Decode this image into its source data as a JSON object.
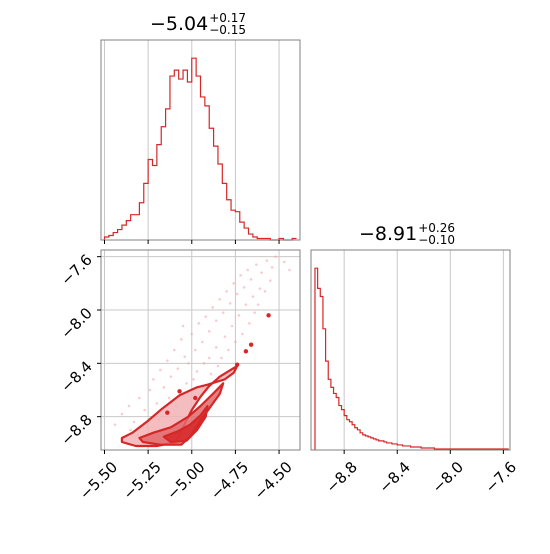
{
  "chart_data": [
    {
      "panel": "p(x) marginal",
      "type": "histogram",
      "title": {
        "median": "−5.04",
        "plus": "+0.17",
        "minus": "−0.15"
      },
      "xlim": [
        -5.52,
        -4.38
      ],
      "xgrid": [
        -5.5,
        -5.25,
        -5.0,
        -4.75,
        -4.5
      ],
      "grid": true,
      "color": "#d62728",
      "bin_edges": [
        -5.5,
        -5.475,
        -5.45,
        -5.425,
        -5.4,
        -5.375,
        -5.35,
        -5.325,
        -5.3,
        -5.275,
        -5.25,
        -5.225,
        -5.2,
        -5.175,
        -5.15,
        -5.125,
        -5.1,
        -5.075,
        -5.05,
        -5.025,
        -5.0,
        -4.975,
        -4.95,
        -4.925,
        -4.9,
        -4.875,
        -4.85,
        -4.825,
        -4.8,
        -4.775,
        -4.75,
        -4.725,
        -4.7,
        -4.675,
        -4.65,
        -4.625,
        -4.6,
        -4.575,
        -4.55,
        -4.525,
        -4.5,
        -4.475,
        -4.45,
        -4.425,
        -4.4
      ],
      "counts": [
        2,
        3,
        5,
        7,
        10,
        13,
        17,
        17,
        25,
        38,
        54,
        50,
        64,
        76,
        88,
        110,
        114,
        108,
        114,
        106,
        122,
        110,
        96,
        90,
        75,
        63,
        51,
        38,
        27,
        20,
        19,
        12,
        8,
        4,
        2,
        1,
        1,
        1,
        0,
        0,
        1,
        0,
        0,
        1
      ]
    },
    {
      "panel": "x vs y 2D density",
      "type": "scatter",
      "xlim": [
        -5.52,
        -4.38
      ],
      "ylim": [
        -9.05,
        -7.55
      ],
      "xticks": [
        -5.5,
        -5.25,
        -5.0,
        -4.75,
        -4.5
      ],
      "xtick_labels": [
        "−5.50",
        "−5.25",
        "−5.00",
        "−4.75",
        "−4.50"
      ],
      "yticks": [
        -7.6,
        -8.0,
        -8.4,
        -8.8
      ],
      "ytick_labels": [
        "−7.6",
        "−8.0",
        "−8.4",
        "−8.8"
      ],
      "grid": true,
      "color": "#d62728",
      "contour_levels": [
        {
          "fill": "#f2b2b4",
          "points": [
            [
              -5.4,
              -8.96
            ],
            [
              -5.34,
              -8.92
            ],
            [
              -5.25,
              -8.83
            ],
            [
              -5.17,
              -8.74
            ],
            [
              -5.07,
              -8.64
            ],
            [
              -4.97,
              -8.58
            ],
            [
              -4.91,
              -8.56
            ],
            [
              -4.86,
              -8.54
            ],
            [
              -4.81,
              -8.52
            ],
            [
              -4.76,
              -8.47
            ],
            [
              -4.74,
              -8.42
            ],
            [
              -4.79,
              -8.46
            ],
            [
              -4.84,
              -8.5
            ],
            [
              -4.9,
              -8.57
            ],
            [
              -4.95,
              -8.65
            ],
            [
              -5.0,
              -8.75
            ],
            [
              -5.05,
              -8.88
            ],
            [
              -5.09,
              -8.99
            ],
            [
              -5.2,
              -9.02
            ],
            [
              -5.32,
              -9.02
            ],
            [
              -5.4,
              -8.99
            ]
          ]
        },
        {
          "fill": "#e06a6c",
          "points": [
            [
              -5.3,
              -8.96
            ],
            [
              -5.22,
              -8.92
            ],
            [
              -5.12,
              -8.88
            ],
            [
              -5.02,
              -8.8
            ],
            [
              -4.95,
              -8.72
            ],
            [
              -4.88,
              -8.63
            ],
            [
              -4.82,
              -8.55
            ],
            [
              -4.84,
              -8.63
            ],
            [
              -4.89,
              -8.72
            ],
            [
              -4.95,
              -8.83
            ],
            [
              -5.01,
              -8.95
            ],
            [
              -5.06,
              -9.01
            ],
            [
              -5.18,
              -9.01
            ],
            [
              -5.28,
              -8.99
            ]
          ]
        },
        {
          "fill": "#d62728",
          "points": [
            [
              -5.16,
              -8.95
            ],
            [
              -5.08,
              -8.91
            ],
            [
              -5.01,
              -8.86
            ],
            [
              -4.95,
              -8.79
            ],
            [
              -4.91,
              -8.72
            ],
            [
              -4.92,
              -8.8
            ],
            [
              -4.97,
              -8.9
            ],
            [
              -5.03,
              -8.98
            ],
            [
              -5.12,
              -8.99
            ]
          ]
        }
      ],
      "islands": [
        [
          -4.56,
          -8.04
        ],
        [
          -4.66,
          -8.26
        ],
        [
          -4.69,
          -8.31
        ],
        [
          -4.74,
          -8.41
        ],
        [
          -4.98,
          -8.66
        ],
        [
          -5.07,
          -8.61
        ],
        [
          -5.14,
          -8.77
        ]
      ],
      "density_points": [
        [
          -5.44,
          -8.86
        ],
        [
          -5.4,
          -8.78
        ],
        [
          -5.36,
          -8.72
        ],
        [
          -5.33,
          -8.84
        ],
        [
          -5.3,
          -8.66
        ],
        [
          -5.27,
          -8.75
        ],
        [
          -5.24,
          -8.6
        ],
        [
          -5.22,
          -8.52
        ],
        [
          -5.2,
          -8.7
        ],
        [
          -5.18,
          -8.45
        ],
        [
          -5.16,
          -8.58
        ],
        [
          -5.14,
          -8.38
        ],
        [
          -5.12,
          -8.5
        ],
        [
          -5.1,
          -8.3
        ],
        [
          -5.08,
          -8.44
        ],
        [
          -5.06,
          -8.22
        ],
        [
          -5.04,
          -8.35
        ],
        [
          -5.02,
          -8.4
        ],
        [
          -5.0,
          -8.18
        ],
        [
          -4.98,
          -8.3
        ],
        [
          -4.96,
          -8.1
        ],
        [
          -4.94,
          -8.24
        ],
        [
          -4.92,
          -8.05
        ],
        [
          -4.9,
          -8.16
        ],
        [
          -4.88,
          -7.98
        ],
        [
          -4.86,
          -8.08
        ],
        [
          -4.84,
          -7.92
        ],
        [
          -4.82,
          -8.02
        ],
        [
          -4.8,
          -7.86
        ],
        [
          -4.78,
          -7.95
        ],
        [
          -4.76,
          -7.8
        ],
        [
          -4.74,
          -7.88
        ],
        [
          -4.72,
          -7.74
        ],
        [
          -4.7,
          -7.83
        ],
        [
          -4.68,
          -7.7
        ],
        [
          -4.66,
          -7.77
        ],
        [
          -4.63,
          -7.66
        ],
        [
          -4.6,
          -7.72
        ],
        [
          -4.57,
          -7.63
        ],
        [
          -4.54,
          -7.68
        ],
        [
          -4.52,
          -7.6
        ],
        [
          -4.47,
          -7.64
        ],
        [
          -4.44,
          -7.7
        ],
        [
          -5.28,
          -8.95
        ],
        [
          -5.22,
          -8.98
        ],
        [
          -5.05,
          -8.12
        ],
        [
          -4.99,
          -8.52
        ],
        [
          -4.9,
          -8.36
        ],
        [
          -4.86,
          -8.28
        ],
        [
          -4.81,
          -8.2
        ],
        [
          -4.77,
          -8.12
        ],
        [
          -4.73,
          -8.04
        ],
        [
          -4.69,
          -7.96
        ],
        [
          -4.65,
          -7.9
        ],
        [
          -4.61,
          -7.84
        ],
        [
          -4.58,
          -7.86
        ],
        [
          -4.55,
          -7.78
        ],
        [
          -5.35,
          -8.9
        ],
        [
          -5.31,
          -8.94
        ],
        [
          -5.25,
          -8.88
        ],
        [
          -5.19,
          -8.82
        ],
        [
          -5.13,
          -8.66
        ],
        [
          -5.09,
          -8.72
        ],
        [
          -5.03,
          -8.55
        ],
        [
          -4.97,
          -8.46
        ],
        [
          -4.93,
          -8.4
        ],
        [
          -4.89,
          -8.48
        ],
        [
          -4.85,
          -8.42
        ],
        [
          -4.83,
          -8.36
        ],
        [
          -4.79,
          -8.3
        ],
        [
          -4.75,
          -8.24
        ],
        [
          -4.71,
          -8.18
        ],
        [
          -4.67,
          -8.1
        ],
        [
          -4.64,
          -8.02
        ],
        [
          -4.62,
          -7.96
        ]
      ]
    },
    {
      "panel": "p(y) marginal",
      "type": "histogram",
      "title": {
        "median": "−8.91",
        "plus": "+0.26",
        "minus": "−0.10"
      },
      "xlim": [
        -9.05,
        -7.55
      ],
      "xticks": [
        -8.8,
        -8.4,
        -8.0,
        -7.6
      ],
      "xtick_labels": [
        "−8.8",
        "−8.4",
        "−8.0",
        "−7.6"
      ],
      "grid": true,
      "color": "#d62728",
      "bin_edges": [
        -9.02,
        -9.0,
        -8.98,
        -8.96,
        -8.94,
        -8.92,
        -8.9,
        -8.88,
        -8.86,
        -8.84,
        -8.82,
        -8.8,
        -8.78,
        -8.76,
        -8.74,
        -8.72,
        -8.7,
        -8.68,
        -8.66,
        -8.64,
        -8.62,
        -8.6,
        -8.58,
        -8.56,
        -8.54,
        -8.52,
        -8.5,
        -8.48,
        -8.46,
        -8.44,
        -8.42,
        -8.4,
        -8.38,
        -8.36,
        -8.34,
        -8.32,
        -8.3,
        -8.28,
        -8.26,
        -8.24,
        -8.22,
        -8.2,
        -8.18,
        -8.16,
        -8.14,
        -8.12,
        -8.1,
        -8.08,
        -8.06,
        -8.04,
        -8.02,
        -8.0,
        -7.98,
        -7.96,
        -7.94,
        -7.92,
        -7.9,
        -7.88,
        -7.86,
        -7.84,
        -7.82,
        -7.8,
        -7.78,
        -7.76,
        -7.74,
        -7.72,
        -7.7,
        -7.68,
        -7.66,
        -7.64,
        -7.62,
        -7.6,
        -7.58,
        -7.56
      ],
      "counts": [
        180,
        160,
        152,
        120,
        88,
        70,
        62,
        56,
        52,
        44,
        40,
        34,
        30,
        28,
        25,
        22,
        20,
        17,
        15,
        14,
        13,
        12,
        11,
        10,
        9,
        9,
        8,
        7,
        7,
        6,
        6,
        5,
        5,
        4,
        4,
        4,
        3,
        3,
        3,
        3,
        2,
        2,
        2,
        2,
        2,
        1,
        1,
        1,
        1,
        1,
        1,
        1,
        1,
        1,
        1,
        1,
        1,
        1,
        1,
        1,
        1,
        1,
        1,
        1,
        1,
        1,
        1,
        1,
        1,
        1,
        1,
        1,
        1
      ]
    }
  ]
}
